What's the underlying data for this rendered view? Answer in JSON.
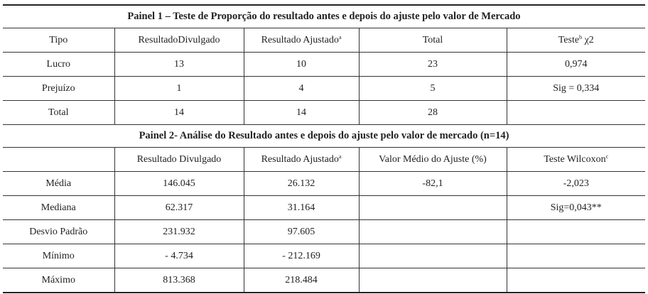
{
  "panel1": {
    "title": "Painel 1 – Teste de Proporção do resultado antes e depois do ajuste pelo valor de Mercado",
    "headers": [
      {
        "text": "Tipo",
        "sup": ""
      },
      {
        "text": "ResultadoDivulgado",
        "sup": ""
      },
      {
        "text": "Resultado Ajustado",
        "sup": "a"
      },
      {
        "text": "Total",
        "sup": ""
      },
      {
        "text": "Teste",
        "sup": "b",
        "after": " χ2"
      }
    ],
    "rows": [
      [
        "Lucro",
        "13",
        "10",
        "23",
        "0,974"
      ],
      [
        "Prejuízo",
        "1",
        "4",
        "5",
        "Sig = 0,334"
      ],
      [
        "Total",
        "14",
        "14",
        "28",
        ""
      ]
    ]
  },
  "panel2": {
    "title": "Painel 2- Análise do Resultado antes e depois do ajuste pelo valor de mercado (n=14)",
    "headers": [
      {
        "text": "",
        "sup": ""
      },
      {
        "text": "Resultado Divulgado",
        "sup": ""
      },
      {
        "text": "Resultado Ajustado",
        "sup": "a"
      },
      {
        "text": "Valor Médio do Ajuste (%)",
        "sup": ""
      },
      {
        "text": "Teste Wilcoxon",
        "sup": "c"
      }
    ],
    "rows": [
      [
        "Média",
        "146.045",
        "26.132",
        "-82,1",
        "-2,023"
      ],
      [
        "Mediana",
        "62.317",
        "31.164",
        "",
        "Sig=0,043**"
      ],
      [
        "Desvio Padrão",
        "231.932",
        "97.605",
        "",
        ""
      ],
      [
        "Mínimo",
        "- 4.734",
        "- 212.169",
        "",
        ""
      ],
      [
        "Máximo",
        "813.368",
        "218.484",
        "",
        ""
      ]
    ]
  }
}
